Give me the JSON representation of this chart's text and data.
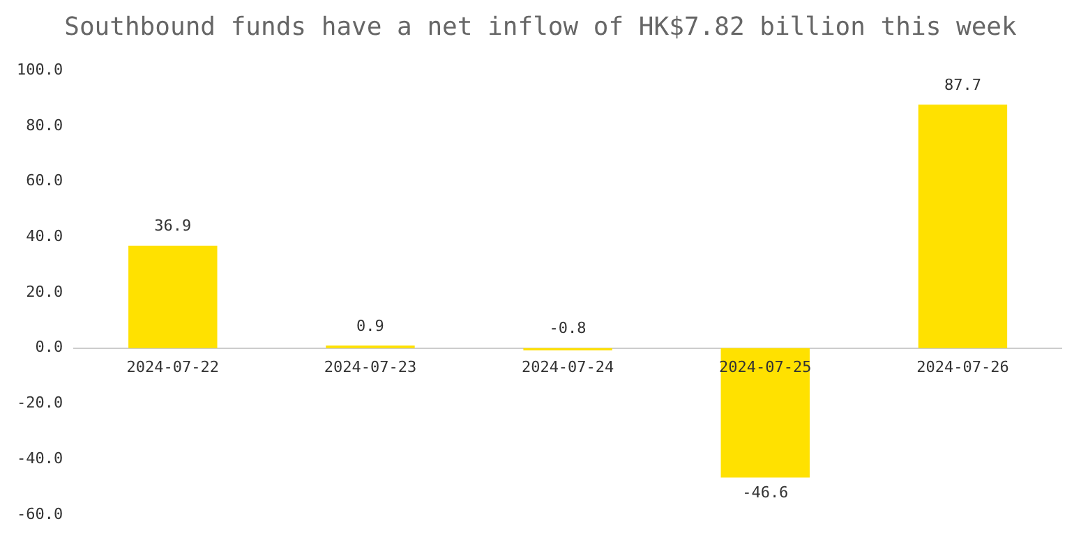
{
  "chart_data": {
    "type": "bar",
    "title": "Southbound funds have a net inflow of HK$7.82 billion this week",
    "categories": [
      "2024-07-22",
      "2024-07-23",
      "2024-07-24",
      "2024-07-25",
      "2024-07-26"
    ],
    "values": [
      36.9,
      0.9,
      -0.8,
      -46.6,
      87.7
    ],
    "color": "#ffe100",
    "ylim": [
      -60,
      100
    ],
    "yticks": [
      {
        "value": -60,
        "label": "-60.0"
      },
      {
        "value": -40,
        "label": "-40.0"
      },
      {
        "value": -20,
        "label": "-20.0"
      },
      {
        "value": 0,
        "label": "0.0"
      },
      {
        "value": 20,
        "label": "20.0"
      },
      {
        "value": 40,
        "label": "40.0"
      },
      {
        "value": 60,
        "label": "60.0"
      },
      {
        "value": 80,
        "label": "80.0"
      },
      {
        "value": 100,
        "label": "100.0"
      }
    ],
    "grid": false,
    "legend": false,
    "data_labels": true
  }
}
